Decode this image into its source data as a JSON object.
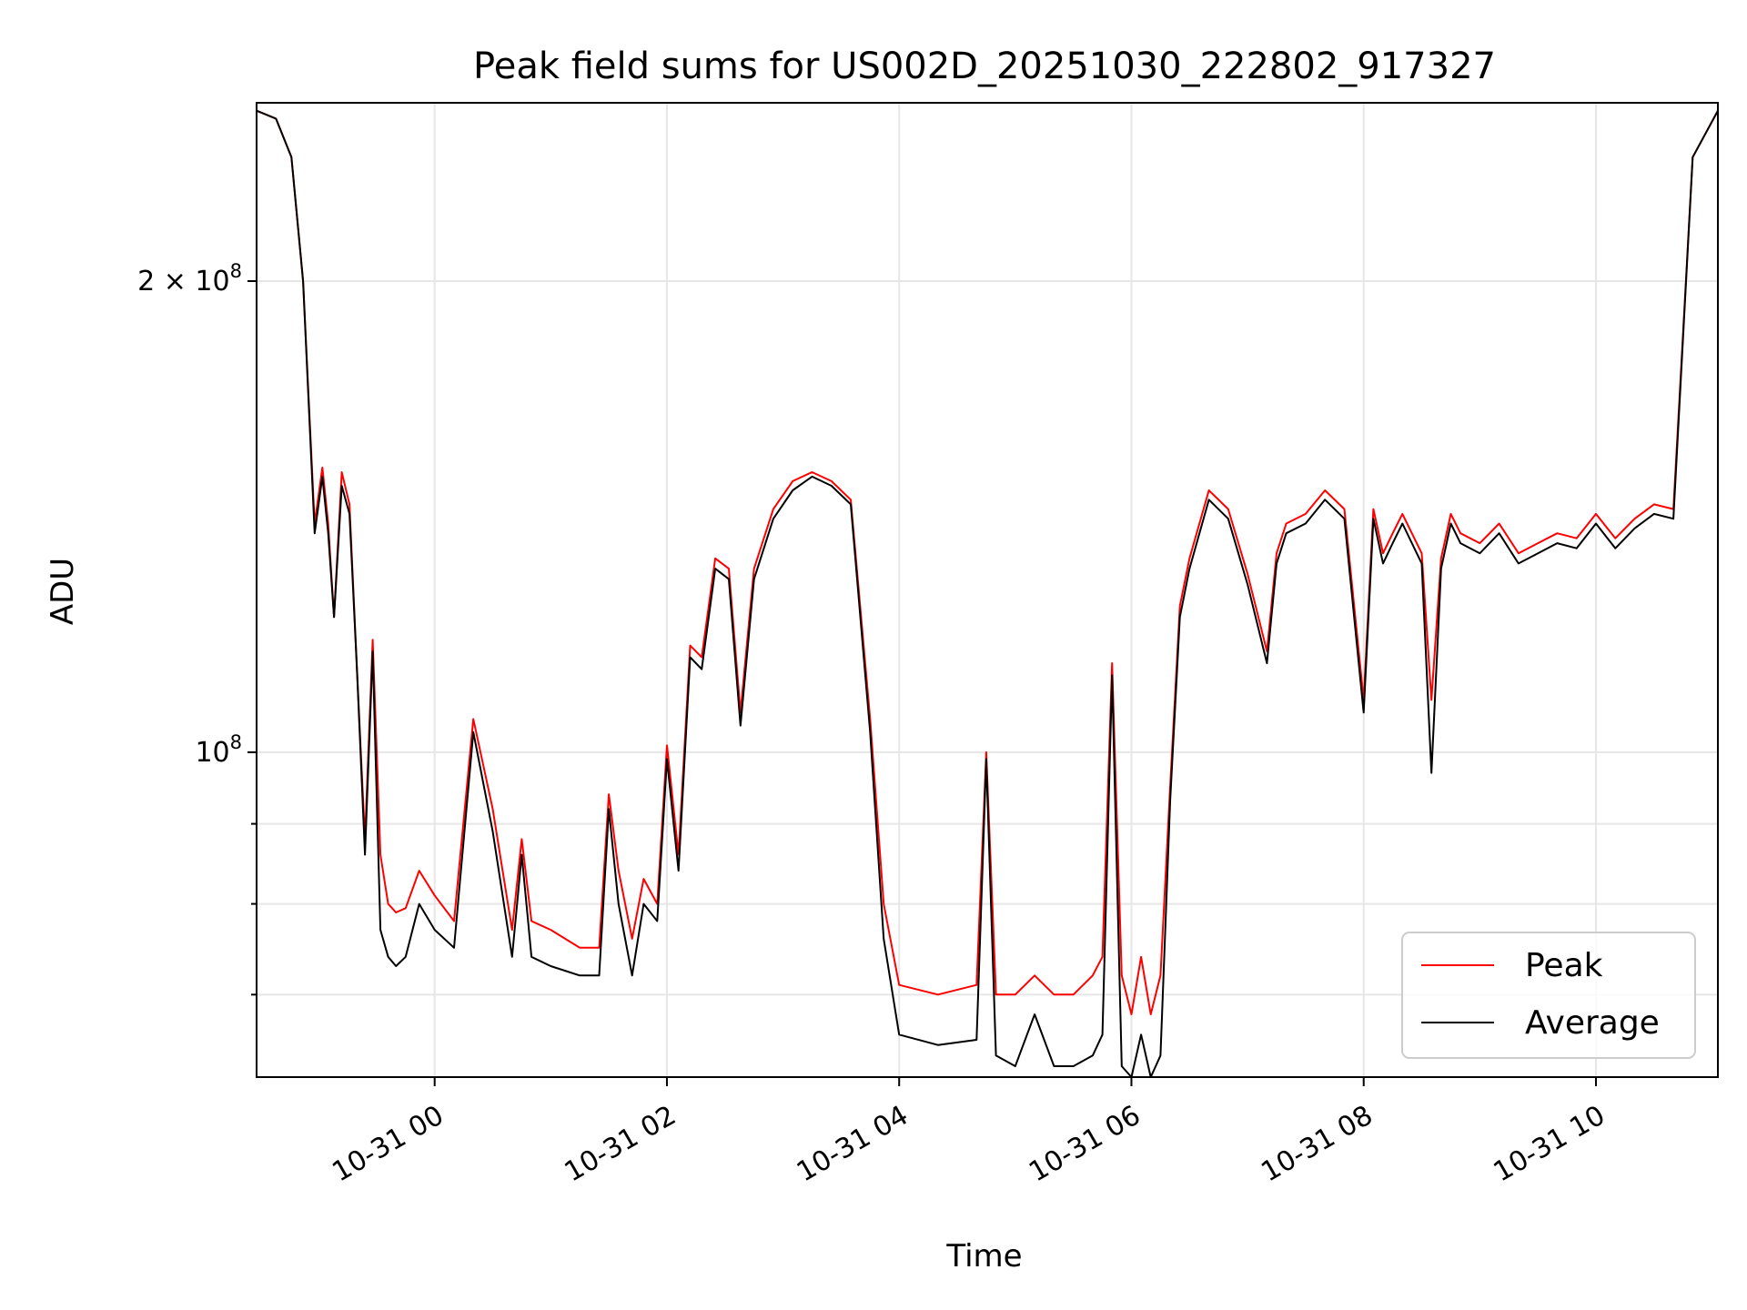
{
  "chart_data": {
    "type": "line",
    "title": "Peak field sums for US002D_20251030_222802_917327",
    "xlabel": "Time",
    "ylabel": "ADU",
    "yscale": "log",
    "grid": true,
    "legend_position": "lower-right",
    "xlim": [
      "2025-10-30 22:28",
      "2025-10-31 11:03"
    ],
    "ylim": [
      62000000,
      260000000
    ],
    "x_ticks": [
      {
        "value": "2025-10-31 00:00",
        "label": "10-31 00"
      },
      {
        "value": "2025-10-31 02:00",
        "label": "10-31 02"
      },
      {
        "value": "2025-10-31 04:00",
        "label": "10-31 04"
      },
      {
        "value": "2025-10-31 06:00",
        "label": "10-31 06"
      },
      {
        "value": "2025-10-31 08:00",
        "label": "10-31 08"
      },
      {
        "value": "2025-10-31 10:00",
        "label": "10-31 10"
      }
    ],
    "y_major_ticks": [
      {
        "value": 100000000,
        "label_base": "10",
        "label_exp": "8"
      },
      {
        "value": 200000000,
        "label_base": "2 × 10",
        "label_exp": "8"
      }
    ],
    "y_minor_ticks": [
      70000000,
      80000000,
      90000000
    ],
    "series": [
      {
        "name": "Peak",
        "color": "#ff0000",
        "x": [
          "2025-10-30 22:28",
          "2025-10-30 22:38",
          "2025-10-30 22:46",
          "2025-10-30 22:52",
          "2025-10-30 22:58",
          "2025-10-30 23:02",
          "2025-10-30 23:05",
          "2025-10-30 23:08",
          "2025-10-30 23:12",
          "2025-10-30 23:16",
          "2025-10-30 23:20",
          "2025-10-30 23:24",
          "2025-10-30 23:28",
          "2025-10-30 23:32",
          "2025-10-30 23:36",
          "2025-10-30 23:40",
          "2025-10-30 23:45",
          "2025-10-30 23:52",
          "2025-10-31 00:00",
          "2025-10-31 00:10",
          "2025-10-31 00:20",
          "2025-10-31 00:30",
          "2025-10-31 00:40",
          "2025-10-31 00:45",
          "2025-10-31 00:50",
          "2025-10-31 01:00",
          "2025-10-31 01:15",
          "2025-10-31 01:25",
          "2025-10-31 01:30",
          "2025-10-31 01:35",
          "2025-10-31 01:42",
          "2025-10-31 01:48",
          "2025-10-31 01:55",
          "2025-10-31 02:00",
          "2025-10-31 02:06",
          "2025-10-31 02:12",
          "2025-10-31 02:18",
          "2025-10-31 02:25",
          "2025-10-31 02:32",
          "2025-10-31 02:38",
          "2025-10-31 02:45",
          "2025-10-31 02:55",
          "2025-10-31 03:05",
          "2025-10-31 03:15",
          "2025-10-31 03:25",
          "2025-10-31 03:35",
          "2025-10-31 03:45",
          "2025-10-31 03:52",
          "2025-10-31 04:00",
          "2025-10-31 04:20",
          "2025-10-31 04:40",
          "2025-10-31 04:45",
          "2025-10-31 04:50",
          "2025-10-31 05:00",
          "2025-10-31 05:10",
          "2025-10-31 05:20",
          "2025-10-31 05:30",
          "2025-10-31 05:40",
          "2025-10-31 05:45",
          "2025-10-31 05:50",
          "2025-10-31 05:55",
          "2025-10-31 06:00",
          "2025-10-31 06:05",
          "2025-10-31 06:10",
          "2025-10-31 06:15",
          "2025-10-31 06:20",
          "2025-10-31 06:25",
          "2025-10-31 06:30",
          "2025-10-31 06:40",
          "2025-10-31 06:50",
          "2025-10-31 07:00",
          "2025-10-31 07:10",
          "2025-10-31 07:15",
          "2025-10-31 07:20",
          "2025-10-31 07:30",
          "2025-10-31 07:40",
          "2025-10-31 07:50",
          "2025-10-31 08:00",
          "2025-10-31 08:05",
          "2025-10-31 08:10",
          "2025-10-31 08:15",
          "2025-10-31 08:20",
          "2025-10-31 08:30",
          "2025-10-31 08:35",
          "2025-10-31 08:40",
          "2025-10-31 08:45",
          "2025-10-31 08:50",
          "2025-10-31 09:00",
          "2025-10-31 09:10",
          "2025-10-31 09:20",
          "2025-10-31 09:30",
          "2025-10-31 09:40",
          "2025-10-31 09:50",
          "2025-10-31 10:00",
          "2025-10-31 10:10",
          "2025-10-31 10:20",
          "2025-10-31 10:30",
          "2025-10-31 10:40",
          "2025-10-31 10:50",
          "2025-10-31 11:03"
        ],
        "y": [
          257000000,
          254000000,
          240000000,
          200000000,
          140000000,
          152000000,
          140000000,
          122000000,
          151000000,
          144000000,
          112000000,
          88000000,
          118000000,
          86000000,
          80000000,
          79000000,
          79500000,
          84000000,
          81000000,
          78000000,
          105000000,
          92000000,
          77000000,
          88000000,
          78000000,
          77000000,
          75000000,
          75000000,
          94000000,
          84000000,
          76000000,
          83000000,
          80000000,
          101000000,
          86000000,
          117000000,
          115000000,
          133000000,
          131000000,
          106000000,
          131000000,
          143000000,
          149000000,
          151000000,
          149000000,
          145000000,
          105000000,
          80000000,
          71000000,
          70000000,
          71000000,
          100000000,
          70000000,
          70000000,
          72000000,
          70000000,
          70000000,
          72000000,
          74000000,
          114000000,
          72000000,
          68000000,
          74000000,
          68000000,
          72000000,
          95000000,
          124000000,
          133000000,
          147000000,
          143000000,
          130000000,
          116000000,
          134000000,
          140000000,
          142000000,
          147000000,
          143000000,
          108000000,
          143000000,
          134000000,
          138000000,
          142000000,
          134000000,
          108000000,
          133000000,
          142000000,
          138000000,
          136000000,
          140000000,
          134000000,
          136000000,
          138000000,
          137000000,
          142000000,
          137000000,
          141000000,
          144000000,
          143000000,
          240000000,
          257000000
        ]
      },
      {
        "name": "Average",
        "color": "#000000",
        "x": [
          "2025-10-30 22:28",
          "2025-10-30 22:38",
          "2025-10-30 22:46",
          "2025-10-30 22:52",
          "2025-10-30 22:58",
          "2025-10-30 23:02",
          "2025-10-30 23:05",
          "2025-10-30 23:08",
          "2025-10-30 23:12",
          "2025-10-30 23:16",
          "2025-10-30 23:20",
          "2025-10-30 23:24",
          "2025-10-30 23:28",
          "2025-10-30 23:32",
          "2025-10-30 23:36",
          "2025-10-30 23:40",
          "2025-10-30 23:45",
          "2025-10-30 23:52",
          "2025-10-31 00:00",
          "2025-10-31 00:10",
          "2025-10-31 00:20",
          "2025-10-31 00:30",
          "2025-10-31 00:40",
          "2025-10-31 00:45",
          "2025-10-31 00:50",
          "2025-10-31 01:00",
          "2025-10-31 01:15",
          "2025-10-31 01:25",
          "2025-10-31 01:30",
          "2025-10-31 01:35",
          "2025-10-31 01:42",
          "2025-10-31 01:48",
          "2025-10-31 01:55",
          "2025-10-31 02:00",
          "2025-10-31 02:06",
          "2025-10-31 02:12",
          "2025-10-31 02:18",
          "2025-10-31 02:25",
          "2025-10-31 02:32",
          "2025-10-31 02:38",
          "2025-10-31 02:45",
          "2025-10-31 02:55",
          "2025-10-31 03:05",
          "2025-10-31 03:15",
          "2025-10-31 03:25",
          "2025-10-31 03:35",
          "2025-10-31 03:45",
          "2025-10-31 03:52",
          "2025-10-31 04:00",
          "2025-10-31 04:20",
          "2025-10-31 04:40",
          "2025-10-31 04:45",
          "2025-10-31 04:50",
          "2025-10-31 05:00",
          "2025-10-31 05:10",
          "2025-10-31 05:20",
          "2025-10-31 05:30",
          "2025-10-31 05:40",
          "2025-10-31 05:45",
          "2025-10-31 05:50",
          "2025-10-31 05:55",
          "2025-10-31 06:00",
          "2025-10-31 06:05",
          "2025-10-31 06:10",
          "2025-10-31 06:15",
          "2025-10-31 06:20",
          "2025-10-31 06:25",
          "2025-10-31 06:30",
          "2025-10-31 06:40",
          "2025-10-31 06:50",
          "2025-10-31 07:00",
          "2025-10-31 07:10",
          "2025-10-31 07:15",
          "2025-10-31 07:20",
          "2025-10-31 07:30",
          "2025-10-31 07:40",
          "2025-10-31 07:50",
          "2025-10-31 08:00",
          "2025-10-31 08:05",
          "2025-10-31 08:10",
          "2025-10-31 08:15",
          "2025-10-31 08:20",
          "2025-10-31 08:30",
          "2025-10-31 08:35",
          "2025-10-31 08:40",
          "2025-10-31 08:45",
          "2025-10-31 08:50",
          "2025-10-31 09:00",
          "2025-10-31 09:10",
          "2025-10-31 09:20",
          "2025-10-31 09:30",
          "2025-10-31 09:40",
          "2025-10-31 09:50",
          "2025-10-31 10:00",
          "2025-10-31 10:10",
          "2025-10-31 10:20",
          "2025-10-31 10:30",
          "2025-10-31 10:40",
          "2025-10-31 10:50",
          "2025-10-31 11:03"
        ],
        "y": [
          257000000,
          254000000,
          240000000,
          200000000,
          138000000,
          150000000,
          138000000,
          122000000,
          148000000,
          142000000,
          112000000,
          86000000,
          116000000,
          77000000,
          74000000,
          73000000,
          74000000,
          80000000,
          77000000,
          75000000,
          103000000,
          89000000,
          74000000,
          86000000,
          74000000,
          73000000,
          72000000,
          72000000,
          92000000,
          80000000,
          72000000,
          80000000,
          78000000,
          99000000,
          84000000,
          115000000,
          113000000,
          131000000,
          129000000,
          104000000,
          129000000,
          141000000,
          147000000,
          150000000,
          148000000,
          144000000,
          103000000,
          76000000,
          66000000,
          65000000,
          65500000,
          99000000,
          64000000,
          63000000,
          68000000,
          63000000,
          63000000,
          64000000,
          66000000,
          112000000,
          63000000,
          62000000,
          66000000,
          62000000,
          64000000,
          93000000,
          122000000,
          131000000,
          145000000,
          141000000,
          128000000,
          114000000,
          132000000,
          138000000,
          140000000,
          145000000,
          141000000,
          106000000,
          141000000,
          132000000,
          136000000,
          140000000,
          132000000,
          97000000,
          131000000,
          140000000,
          136000000,
          134000000,
          138000000,
          132000000,
          134000000,
          136000000,
          135000000,
          140000000,
          135000000,
          139000000,
          142000000,
          141000000,
          240000000,
          257000000
        ]
      }
    ]
  }
}
